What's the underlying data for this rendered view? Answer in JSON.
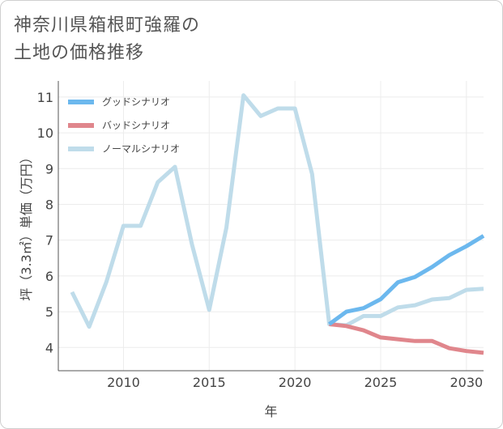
{
  "title": {
    "line1": "神奈川県箱根町強羅の",
    "line2": "土地の価格推移"
  },
  "chart_data": {
    "type": "line",
    "xlabel": "年",
    "ylabel": "坪（3.3㎡）単価（万円）",
    "xlim": [
      2006.2,
      2031
    ],
    "ylim": [
      3.35,
      11.45
    ],
    "xticks": [
      2010,
      2015,
      2020,
      2025,
      2030
    ],
    "yticks": [
      4,
      5,
      6,
      7,
      8,
      9,
      10,
      11
    ],
    "series": [
      {
        "name": "グッドシナリオ",
        "color": "#6cb8ee",
        "x": [
          2022,
          2023,
          2024,
          2025,
          2026,
          2027,
          2028,
          2029,
          2030,
          2031
        ],
        "y": [
          4.65,
          5.0,
          5.1,
          5.35,
          5.82,
          5.97,
          6.25,
          6.58,
          6.83,
          7.12
        ]
      },
      {
        "name": "バッドシナリオ",
        "color": "#e0868c",
        "x": [
          2022,
          2023,
          2024,
          2025,
          2026,
          2027,
          2028,
          2029,
          2030,
          2031
        ],
        "y": [
          4.65,
          4.6,
          4.48,
          4.28,
          4.23,
          4.18,
          4.18,
          3.98,
          3.9,
          3.85
        ]
      },
      {
        "name": "ノーマルシナリオ",
        "color": "#bfdcea",
        "x": [
          2007,
          2008,
          2009,
          2010,
          2011,
          2012,
          2013,
          2014,
          2015,
          2016,
          2017,
          2018,
          2019,
          2020,
          2021,
          2022,
          2023,
          2024,
          2025,
          2026,
          2027,
          2028,
          2029,
          2030,
          2031
        ],
        "y": [
          5.55,
          4.58,
          5.83,
          7.4,
          7.4,
          8.62,
          9.05,
          6.87,
          5.05,
          7.35,
          11.05,
          10.47,
          10.68,
          10.68,
          8.85,
          4.65,
          4.62,
          4.88,
          4.88,
          5.12,
          5.18,
          5.34,
          5.38,
          5.61,
          5.64
        ]
      }
    ]
  }
}
